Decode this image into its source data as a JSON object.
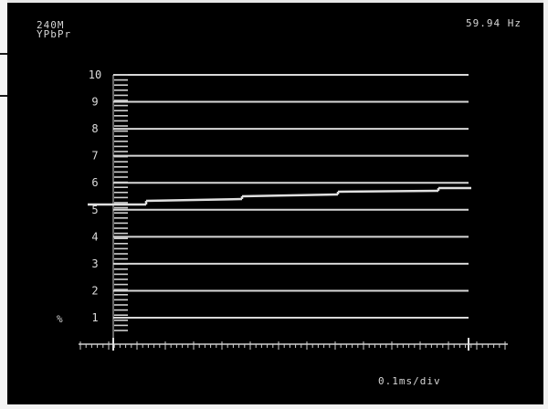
{
  "osd": {
    "format_line1": "240M",
    "format_line2": "YPbPr",
    "frequency": "59.94 Hz",
    "timebase": "0.1ms/div",
    "unit": "%"
  },
  "graticule": {
    "y_labels": [
      "10",
      "9",
      "8",
      "7",
      "6",
      "5",
      "4",
      "3",
      "2",
      "1"
    ],
    "color": "#d8d8d8"
  },
  "colors": {
    "background": "#000000",
    "trace": "#e0e0e0"
  }
}
